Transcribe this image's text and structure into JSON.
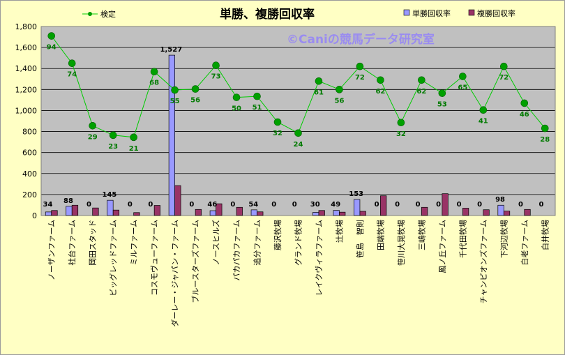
{
  "chart_data": {
    "type": "bar",
    "title": "単勝、複勝回収率",
    "watermark": "©Caniの競馬データ研究室",
    "ylim": [
      0,
      1800
    ],
    "yticks": [
      "0",
      "200",
      "400",
      "600",
      "800",
      "1,000",
      "1,200",
      "1,400",
      "1,600",
      "1,800"
    ],
    "ytick_values": [
      0,
      200,
      400,
      600,
      800,
      1000,
      1200,
      1400,
      1600,
      1800
    ],
    "grid": true,
    "legend_position": "top",
    "categories": [
      "ノーザンファーム",
      "社台ファーム",
      "岡田スタッド",
      "ビッグレッドファーム",
      "ミルファーム",
      "コスモヴューファーム",
      "ダーレー・ジャパン・ファーム",
      "ブルースターズファーム",
      "ノースヒルズ",
      "パカパカファーム",
      "追分ファーム",
      "藤沢牧場",
      "グランド牧場",
      "レイクヴィラファーム",
      "辻牧場",
      "笹島　智則",
      "田端牧場",
      "笹川大晃牧場",
      "三嶋牧場",
      "鳳ノ丘ファーム",
      "千代田牧場",
      "チャンピオンズファーム",
      "下河辺牧場",
      "白老ファーム",
      "白井牧場"
    ],
    "series": [
      {
        "name": "単勝回収率",
        "kind": "bar",
        "color": "#9999ff",
        "values": [
          34,
          88,
          0,
          145,
          0,
          0,
          1527,
          0,
          46,
          0,
          54,
          0,
          0,
          30,
          49,
          153,
          0,
          0,
          0,
          0,
          0,
          0,
          98,
          0,
          0
        ],
        "labels": [
          "34",
          "88",
          "0",
          "145",
          "0",
          "0",
          "1,527",
          "0",
          "46",
          "0",
          "54",
          "0",
          "0",
          "30",
          "49",
          "153",
          "0",
          "0",
          "0",
          "0",
          "0",
          "0",
          "98",
          "0",
          "0"
        ]
      },
      {
        "name": "複勝回収率",
        "kind": "bar",
        "color": "#993366",
        "values": [
          48,
          98,
          72,
          52,
          28,
          96,
          285,
          58,
          112,
          78,
          35,
          0,
          0,
          48,
          32,
          40,
          188,
          0,
          78,
          208,
          70,
          55,
          42,
          58,
          0
        ]
      },
      {
        "name": "検定",
        "kind": "line",
        "color": "#00cc00",
        "marker_color": "#00a000",
        "values": [
          1710,
          1450,
          855,
          765,
          745,
          1370,
          1195,
          1205,
          1430,
          1125,
          1135,
          890,
          785,
          1280,
          1200,
          1420,
          1290,
          885,
          1290,
          1165,
          1325,
          1005,
          1420,
          1070,
          830
        ],
        "labels": [
          "94",
          "74",
          "29",
          "23",
          "21",
          "68",
          "55",
          "56",
          "73",
          "50",
          "51",
          "32",
          "24",
          "61",
          "56",
          "72",
          "62",
          "32",
          "62",
          "53",
          "65",
          "41",
          "72",
          "46",
          "28"
        ]
      }
    ]
  }
}
